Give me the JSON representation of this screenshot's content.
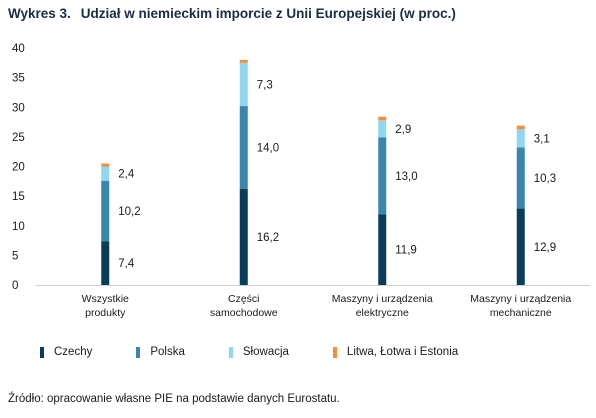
{
  "title": {
    "number": "Wykres 3.",
    "text": "Udział w niemieckim imporcie z Unii Europejskiej (w proc.)"
  },
  "source": "Źródło: opracowanie własne PIE na podstawie danych Eurostatu.",
  "chart_data": {
    "type": "bar",
    "stacked": true,
    "categories": [
      [
        "Wszystkie",
        "produkty"
      ],
      [
        "Części",
        "samochodowe"
      ],
      [
        "Maszyny i urządzenia",
        "elektryczne"
      ],
      [
        "Maszyny i urządzenia",
        "mechaniczne"
      ]
    ],
    "series": [
      {
        "name": "Czechy",
        "color": "#0a3d5c",
        "values": [
          7.4,
          16.2,
          11.9,
          12.9
        ],
        "labels": [
          "7,4",
          "16,2",
          "11,9",
          "12,9"
        ]
      },
      {
        "name": "Polska",
        "color": "#3a86ac",
        "values": [
          10.2,
          14.0,
          13.0,
          10.3
        ],
        "labels": [
          "10,2",
          "14,0",
          "13,0",
          "10,3"
        ]
      },
      {
        "name": "Słowacja",
        "color": "#8fd6ee",
        "values": [
          2.4,
          7.3,
          2.9,
          3.1
        ],
        "labels": [
          "2,4",
          "7,3",
          "2,9",
          "3,1"
        ]
      },
      {
        "name": "Litwa, Łotwa i Estonia",
        "color": "#f28e3c",
        "values": [
          0.5,
          0.5,
          0.6,
          0.6
        ],
        "labels": []
      }
    ],
    "ylim": [
      0,
      40
    ],
    "yticks": [
      0,
      5,
      10,
      15,
      20,
      25,
      30,
      35,
      40
    ],
    "grid": false,
    "legend": "bottom"
  }
}
